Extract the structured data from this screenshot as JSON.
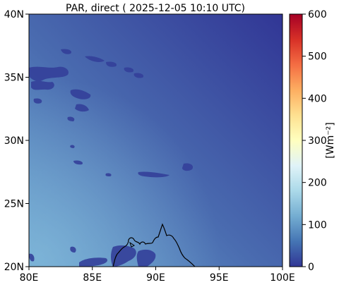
{
  "title": "PAR, direct ( 2025-12-05 10:10 UTC)",
  "map": {
    "lon_range": [
      80,
      100
    ],
    "lat_range": [
      20,
      40
    ],
    "x_ticks": [
      {
        "value": 80,
        "label": "80E"
      },
      {
        "value": 85,
        "label": "85E"
      },
      {
        "value": 90,
        "label": "90E"
      },
      {
        "value": 95,
        "label": "95E"
      },
      {
        "value": 100,
        "label": "100E"
      }
    ],
    "y_ticks": [
      {
        "value": 20,
        "label": "20N"
      },
      {
        "value": 25,
        "label": "25N"
      },
      {
        "value": 30,
        "label": "30N"
      },
      {
        "value": 35,
        "label": "35N"
      },
      {
        "value": 40,
        "label": "40N"
      }
    ],
    "field_gradient": {
      "southwest_color": "#6aa6cf",
      "northeast_color": "#313695",
      "mid_color": "#4a6cb0"
    }
  },
  "colorbar": {
    "label": "[Wm⁻²]",
    "range": [
      0,
      600
    ],
    "ticks": [
      {
        "value": 0,
        "label": "0"
      },
      {
        "value": 100,
        "label": "100"
      },
      {
        "value": 200,
        "label": "200"
      },
      {
        "value": 300,
        "label": "300"
      },
      {
        "value": 400,
        "label": "400"
      },
      {
        "value": 500,
        "label": "500"
      },
      {
        "value": 600,
        "label": "600"
      }
    ],
    "colormap": "RdYlBu_r",
    "stops": [
      "#313695",
      "#4575b4",
      "#74add1",
      "#abd9e9",
      "#e0f3f8",
      "#ffffbf",
      "#fee090",
      "#fdae61",
      "#f46d43",
      "#d73027",
      "#a50026"
    ]
  }
}
